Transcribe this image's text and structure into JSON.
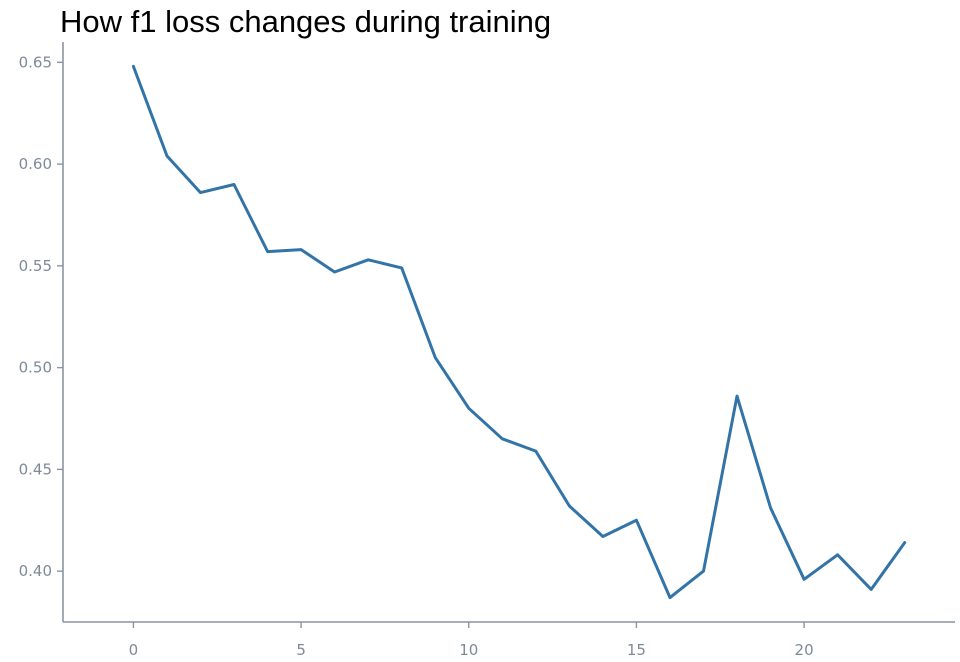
{
  "chart_data": {
    "type": "line",
    "title": "How f1 loss changes during training",
    "xlabel": "",
    "ylabel": "",
    "xlim": [
      -2.1,
      24.5
    ],
    "ylim": [
      0.375,
      0.66
    ],
    "x_ticks": [
      0,
      5,
      10,
      15,
      20
    ],
    "x_tick_labels": [
      "0",
      "5",
      "10",
      "15",
      "20"
    ],
    "y_ticks": [
      0.4,
      0.45,
      0.5,
      0.55,
      0.6,
      0.65
    ],
    "y_tick_labels": [
      "0.40",
      "0.45",
      "0.50",
      "0.55",
      "0.60",
      "0.65"
    ],
    "grid": false,
    "series": [
      {
        "color": "#3274a8",
        "x": [
          0,
          1,
          2,
          3,
          4,
          5,
          6,
          7,
          8,
          9,
          10,
          11,
          12,
          13,
          14,
          15,
          16,
          17,
          18,
          19,
          20,
          21,
          22,
          23
        ],
        "values": [
          0.648,
          0.604,
          0.586,
          0.59,
          0.557,
          0.558,
          0.547,
          0.553,
          0.549,
          0.505,
          0.48,
          0.465,
          0.459,
          0.432,
          0.417,
          0.425,
          0.387,
          0.4,
          0.486,
          0.431,
          0.396,
          0.408,
          0.391,
          0.414
        ]
      }
    ],
    "axis_color": "#8a94a3"
  }
}
